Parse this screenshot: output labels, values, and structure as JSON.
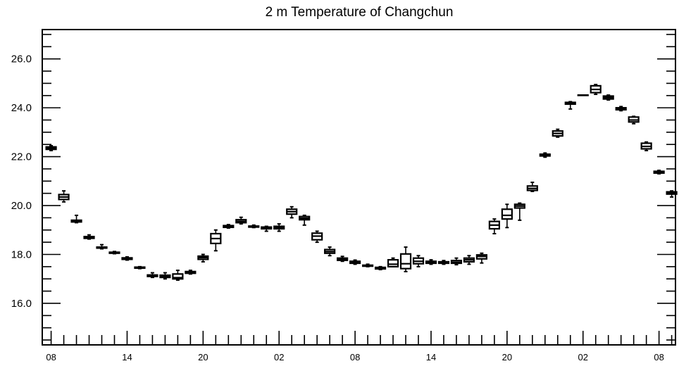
{
  "chart_data": {
    "type": "boxplot",
    "title": "2 m Temperature of Changchun",
    "xlabel": "",
    "ylabel": "",
    "ylim": [
      14.3,
      27.2
    ],
    "y_ticks": [
      16.0,
      18.0,
      20.0,
      22.0,
      24.0,
      26.0
    ],
    "y_tick_labels": [
      "16.0",
      "18.0",
      "20.0",
      "22.0",
      "24.0",
      "26.0"
    ],
    "x_range": [
      -0.7,
      49.3
    ],
    "x_tick_positions": [
      0,
      6,
      12,
      18,
      24,
      30,
      36,
      42,
      48
    ],
    "x_tick_labels": [
      "08",
      "14",
      "20",
      "02",
      "08",
      "14",
      "20",
      "02",
      "08"
    ],
    "grid": false,
    "boxes": [
      {
        "x": 0,
        "min": 22.25,
        "q1": 22.3,
        "median": 22.35,
        "q3": 22.4,
        "max": 22.45
      },
      {
        "x": 1,
        "min": 20.15,
        "q1": 20.25,
        "median": 20.35,
        "q3": 20.45,
        "max": 20.6
      },
      {
        "x": 2,
        "min": 19.3,
        "q1": 19.33,
        "median": 19.36,
        "q3": 19.4,
        "max": 19.6
      },
      {
        "x": 3,
        "min": 18.63,
        "q1": 18.66,
        "median": 18.7,
        "q3": 18.73,
        "max": 18.8
      },
      {
        "x": 4,
        "min": 18.23,
        "q1": 18.26,
        "median": 18.28,
        "q3": 18.3,
        "max": 18.4
      },
      {
        "x": 5,
        "min": 18.03,
        "q1": 18.05,
        "median": 18.07,
        "q3": 18.09,
        "max": 18.12
      },
      {
        "x": 6,
        "min": 17.77,
        "q1": 17.8,
        "median": 17.83,
        "q3": 17.86,
        "max": 17.9
      },
      {
        "x": 7,
        "min": 17.42,
        "q1": 17.44,
        "median": 17.46,
        "q3": 17.48,
        "max": 17.5
      },
      {
        "x": 8,
        "min": 17.06,
        "q1": 17.1,
        "median": 17.13,
        "q3": 17.16,
        "max": 17.25
      },
      {
        "x": 9,
        "min": 17.0,
        "q1": 17.06,
        "median": 17.1,
        "q3": 17.15,
        "max": 17.25
      },
      {
        "x": 10,
        "min": 16.95,
        "q1": 17.0,
        "median": 17.05,
        "q3": 17.2,
        "max": 17.35
      },
      {
        "x": 11,
        "min": 17.2,
        "q1": 17.23,
        "median": 17.27,
        "q3": 17.3,
        "max": 17.35
      },
      {
        "x": 12,
        "min": 17.7,
        "q1": 17.8,
        "median": 17.87,
        "q3": 17.93,
        "max": 18.0
      },
      {
        "x": 13,
        "min": 18.15,
        "q1": 18.45,
        "median": 18.65,
        "q3": 18.85,
        "max": 19.0
      },
      {
        "x": 14,
        "min": 19.08,
        "q1": 19.11,
        "median": 19.14,
        "q3": 19.18,
        "max": 19.22
      },
      {
        "x": 15,
        "min": 19.25,
        "q1": 19.3,
        "median": 19.35,
        "q3": 19.42,
        "max": 19.52
      },
      {
        "x": 16,
        "min": 19.1,
        "q1": 19.12,
        "median": 19.14,
        "q3": 19.16,
        "max": 19.2
      },
      {
        "x": 17,
        "min": 18.95,
        "q1": 19.05,
        "median": 19.08,
        "q3": 19.12,
        "max": 19.15
      },
      {
        "x": 18,
        "min": 18.95,
        "q1": 19.05,
        "median": 19.1,
        "q3": 19.15,
        "max": 19.25
      },
      {
        "x": 19,
        "min": 19.5,
        "q1": 19.65,
        "median": 19.75,
        "q3": 19.85,
        "max": 19.95
      },
      {
        "x": 20,
        "min": 19.2,
        "q1": 19.42,
        "median": 19.48,
        "q3": 19.55,
        "max": 19.6
      },
      {
        "x": 21,
        "min": 18.5,
        "q1": 18.6,
        "median": 18.75,
        "q3": 18.87,
        "max": 18.95
      },
      {
        "x": 22,
        "min": 17.95,
        "q1": 18.05,
        "median": 18.12,
        "q3": 18.2,
        "max": 18.3
      },
      {
        "x": 23,
        "min": 17.72,
        "q1": 17.76,
        "median": 17.8,
        "q3": 17.85,
        "max": 17.92
      },
      {
        "x": 24,
        "min": 17.6,
        "q1": 17.64,
        "median": 17.68,
        "q3": 17.72,
        "max": 17.77
      },
      {
        "x": 25,
        "min": 17.5,
        "q1": 17.52,
        "median": 17.54,
        "q3": 17.56,
        "max": 17.6
      },
      {
        "x": 26,
        "min": 17.38,
        "q1": 17.41,
        "median": 17.44,
        "q3": 17.47,
        "max": 17.5
      },
      {
        "x": 27,
        "min": 17.5,
        "q1": 17.5,
        "median": 17.6,
        "q3": 17.78,
        "max": 17.85
      },
      {
        "x": 28,
        "min": 17.3,
        "q1": 17.42,
        "median": 17.62,
        "q3": 18.02,
        "max": 18.3
      },
      {
        "x": 29,
        "min": 17.5,
        "q1": 17.62,
        "median": 17.72,
        "q3": 17.85,
        "max": 17.95
      },
      {
        "x": 30,
        "min": 17.6,
        "q1": 17.64,
        "median": 17.68,
        "q3": 17.72,
        "max": 17.78
      },
      {
        "x": 31,
        "min": 17.6,
        "q1": 17.64,
        "median": 17.67,
        "q3": 17.7,
        "max": 17.75
      },
      {
        "x": 32,
        "min": 17.58,
        "q1": 17.64,
        "median": 17.68,
        "q3": 17.75,
        "max": 17.85
      },
      {
        "x": 33,
        "min": 17.6,
        "q1": 17.7,
        "median": 17.78,
        "q3": 17.85,
        "max": 17.95
      },
      {
        "x": 34,
        "min": 17.65,
        "q1": 17.82,
        "median": 17.92,
        "q3": 17.98,
        "max": 18.05
      },
      {
        "x": 35,
        "min": 18.85,
        "q1": 19.05,
        "median": 19.2,
        "q3": 19.35,
        "max": 19.45
      },
      {
        "x": 36,
        "min": 19.1,
        "q1": 19.45,
        "median": 19.6,
        "q3": 19.85,
        "max": 20.05
      },
      {
        "x": 37,
        "min": 19.4,
        "q1": 19.9,
        "median": 19.98,
        "q3": 20.05,
        "max": 20.1
      },
      {
        "x": 38,
        "min": 20.58,
        "q1": 20.62,
        "median": 20.7,
        "q3": 20.8,
        "max": 20.95
      },
      {
        "x": 39,
        "min": 21.98,
        "q1": 22.03,
        "median": 22.07,
        "q3": 22.1,
        "max": 22.15
      },
      {
        "x": 40,
        "min": 22.8,
        "q1": 22.85,
        "median": 22.95,
        "q3": 23.05,
        "max": 23.12
      },
      {
        "x": 41,
        "min": 23.95,
        "q1": 24.15,
        "median": 24.2,
        "q3": 24.22,
        "max": 24.25
      },
      {
        "x": 42,
        "min": 24.52,
        "q1": 24.52,
        "median": 24.52,
        "q3": 24.52,
        "max": 24.52
      },
      {
        "x": 43,
        "min": 24.55,
        "q1": 24.62,
        "median": 24.75,
        "q3": 24.9,
        "max": 24.95
      },
      {
        "x": 44,
        "min": 24.32,
        "q1": 24.36,
        "median": 24.42,
        "q3": 24.48,
        "max": 24.52
      },
      {
        "x": 45,
        "min": 23.88,
        "q1": 23.92,
        "median": 23.97,
        "q3": 24.0,
        "max": 24.05
      },
      {
        "x": 46,
        "min": 23.35,
        "q1": 23.42,
        "median": 23.5,
        "q3": 23.62,
        "max": 23.65
      },
      {
        "x": 47,
        "min": 22.25,
        "q1": 22.32,
        "median": 22.42,
        "q3": 22.55,
        "max": 22.6
      },
      {
        "x": 48,
        "min": 21.3,
        "q1": 21.33,
        "median": 21.37,
        "q3": 21.4,
        "max": 21.44
      },
      {
        "x": 49,
        "min": 20.35,
        "q1": 20.47,
        "median": 20.52,
        "q3": 20.56,
        "max": 20.6
      }
    ]
  }
}
